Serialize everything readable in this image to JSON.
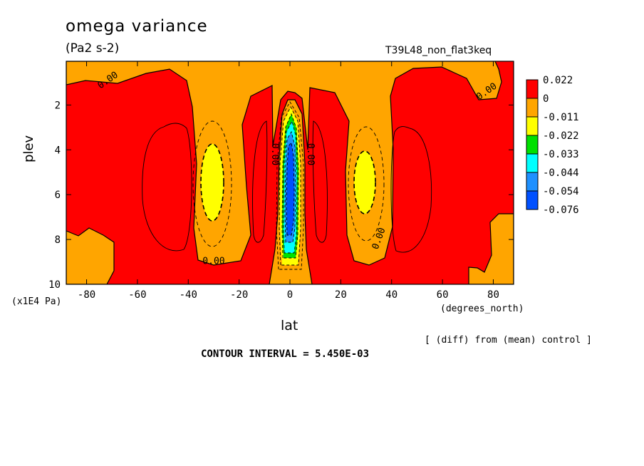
{
  "chart_data": {
    "type": "heatmap",
    "title": "omega variance",
    "units": "(Pa2 s-2)",
    "run_label": "T39L48_non_flat3keq",
    "ylabel": "plev",
    "ylabel_unit": "(x1E4 Pa)",
    "xlabel": "lat",
    "xlabel_unit": "(degrees_north)",
    "note": "[ (diff) from (mean) control ]",
    "contour_interval": "CONTOUR INTERVAL = 5.450E-03",
    "xlim": [
      -88,
      88
    ],
    "ylim": [
      10,
      0.05
    ],
    "x_ticks": [
      -80,
      -60,
      -40,
      -20,
      0,
      20,
      40,
      60,
      80
    ],
    "x_tick_labels": [
      "-80",
      "-60",
      "-40",
      "-20",
      "0",
      "20",
      "40",
      "60",
      "80"
    ],
    "y_ticks": [
      2,
      4,
      6,
      8,
      10
    ],
    "y_tick_labels": [
      "2",
      "4",
      "6",
      "8",
      "10"
    ],
    "colorbar": {
      "labels": [
        "0.022",
        "0",
        "-0.011",
        "-0.022",
        "-0.033",
        "-0.044",
        "-0.054",
        "-0.076"
      ],
      "colors": [
        "#ff0000",
        "#ffa500",
        "#ffff00",
        "#00e000",
        "#00ffff",
        "#1e90ff",
        "#0050ff"
      ]
    },
    "contour_labels": [
      {
        "text": "0.00",
        "x": -71,
        "y": 1.0
      },
      {
        "text": "0.00",
        "x": -30,
        "y": 9.1
      },
      {
        "text": "0.00",
        "x": -7,
        "y": 4.2
      },
      {
        "text": "0.00",
        "x": 7,
        "y": 4.2
      },
      {
        "text": "0.00",
        "x": 36,
        "y": 8.0
      },
      {
        "text": "0.00",
        "x": 78,
        "y": 1.5
      }
    ],
    "features": [
      {
        "name": "equatorial minimum",
        "lat": 0,
        "plev_range": [
          3,
          9
        ],
        "min_value": -0.076
      },
      {
        "name": "southern subtropical minimum",
        "lat": -30,
        "plev_range": [
          4,
          7
        ],
        "value": -0.022
      },
      {
        "name": "northern subtropical minimum",
        "lat": 29,
        "plev_range": [
          4,
          7
        ],
        "value": -0.022
      },
      {
        "name": "positive region",
        "lat_range": [
          -88,
          88
        ],
        "value": 0.022
      }
    ]
  }
}
